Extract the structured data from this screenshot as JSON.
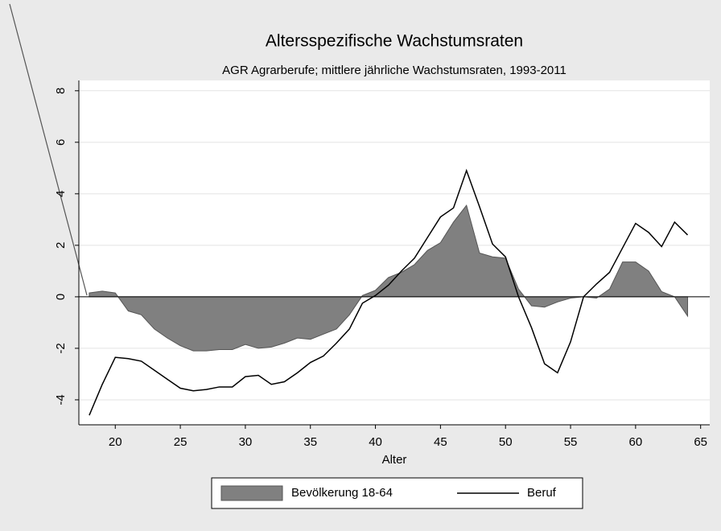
{
  "chart_data": {
    "type": "area",
    "title": "Altersspezifische Wachstumsraten",
    "subtitle": "AGR Agrarberufe; mittlere jährliche Wachstumsraten, 1993-2011",
    "x_label": "Alter",
    "x": [
      18,
      19,
      20,
      21,
      22,
      23,
      24,
      25,
      26,
      27,
      28,
      29,
      30,
      31,
      32,
      33,
      34,
      35,
      36,
      37,
      38,
      39,
      40,
      41,
      42,
      43,
      44,
      45,
      46,
      47,
      48,
      49,
      50,
      51,
      52,
      53,
      54,
      55,
      56,
      57,
      58,
      59,
      60,
      61,
      62,
      63,
      64
    ],
    "series": [
      {
        "name": "Bevölkerung 18-64",
        "type": "area",
        "color": "#808080",
        "values": [
          0.15,
          0.22,
          0.15,
          -0.55,
          -0.7,
          -1.25,
          -1.6,
          -1.9,
          -2.1,
          -2.1,
          -2.05,
          -2.05,
          -1.85,
          -2.0,
          -1.95,
          -1.8,
          -1.6,
          -1.65,
          -1.45,
          -1.25,
          -0.7,
          0.05,
          0.25,
          0.75,
          0.95,
          1.25,
          1.8,
          2.1,
          2.9,
          3.55,
          1.7,
          1.55,
          1.5,
          0.3,
          -0.35,
          -0.4,
          -0.2,
          -0.05,
          0,
          -0.05,
          0.3,
          1.35,
          1.35,
          1.0,
          0.2,
          0,
          -0.75
        ]
      },
      {
        "name": "Beruf",
        "type": "line",
        "color": "#000000",
        "values": [
          -4.6,
          -3.4,
          -2.35,
          -2.4,
          -2.5,
          -2.85,
          -3.2,
          -3.55,
          -3.65,
          -3.6,
          -3.5,
          -3.5,
          -3.1,
          -3.05,
          -3.4,
          -3.3,
          -2.95,
          -2.55,
          -2.3,
          -1.8,
          -1.25,
          -0.25,
          0.05,
          0.45,
          1.0,
          1.5,
          2.3,
          3.1,
          3.45,
          4.9,
          3.5,
          2.05,
          1.55,
          0,
          -1.2,
          -2.6,
          -2.95,
          -1.75,
          0,
          0.5,
          0.95,
          1.9,
          2.85,
          2.5,
          1.95,
          2.9,
          2.4
        ]
      }
    ],
    "xlim": [
      17.2,
      65.7
    ],
    "xticks": [
      20,
      25,
      30,
      35,
      40,
      45,
      50,
      55,
      60,
      65
    ],
    "ylim": [
      -4.97,
      8.4
    ],
    "yticks": [
      -4,
      -2,
      0,
      2,
      4,
      6,
      8
    ],
    "grid": true
  }
}
